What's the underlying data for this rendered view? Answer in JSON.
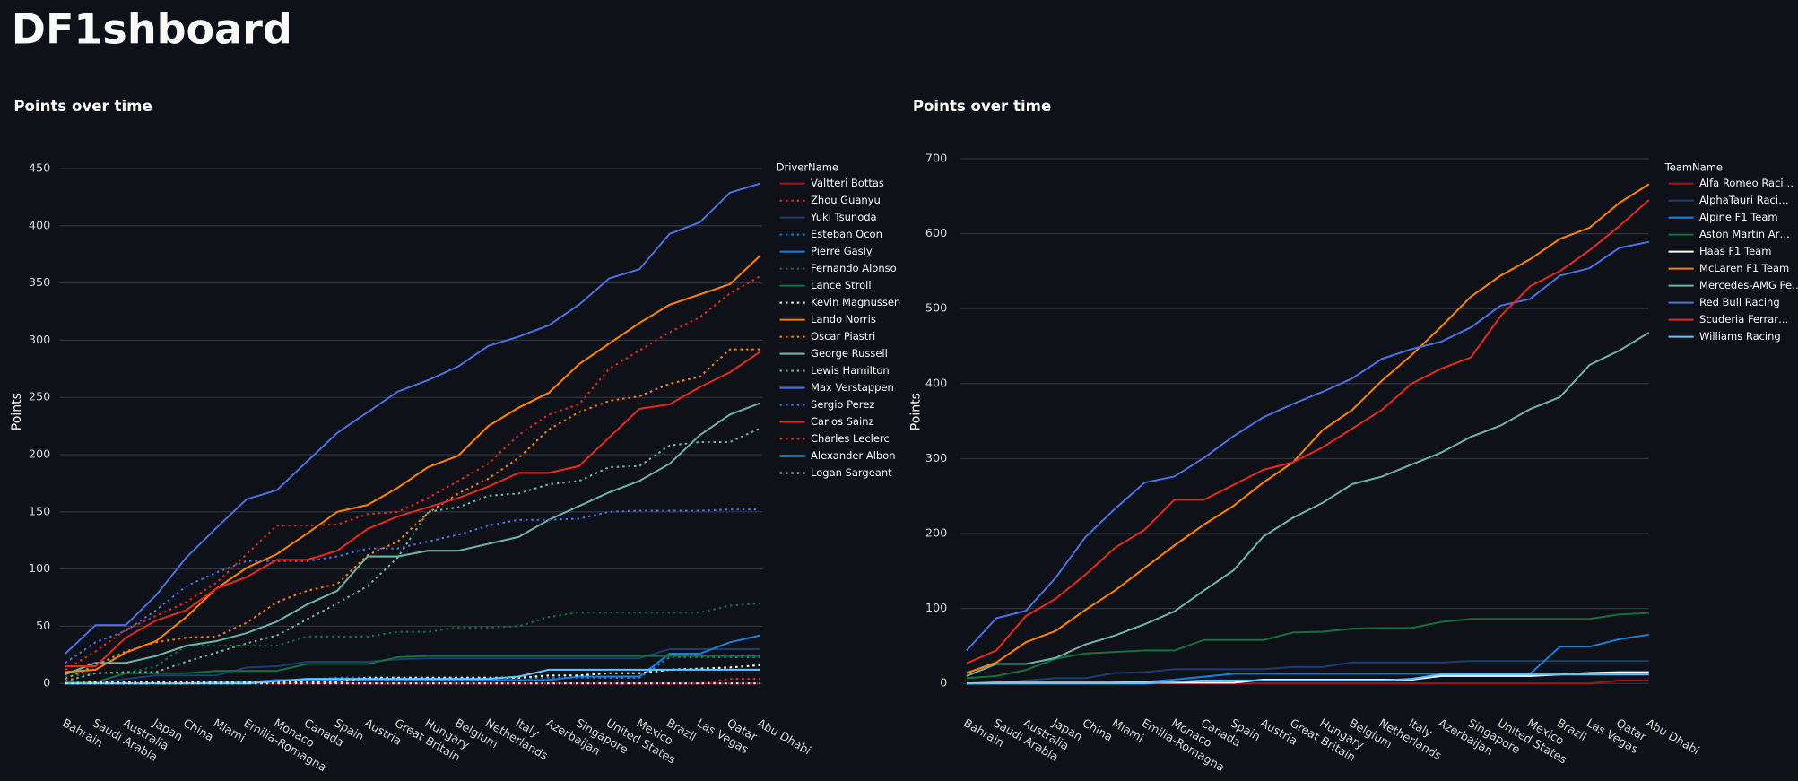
{
  "heading": "DF1shboard",
  "chart_data": [
    {
      "type": "line",
      "title": "Points over time",
      "ylabel": "Points",
      "legend_title": "DriverName",
      "legend": "right",
      "grid": true,
      "categories": [
        "Bahrain",
        "Saudi Arabia",
        "Australia",
        "Japan",
        "China",
        "Miami",
        "Emilia-Romagna",
        "Monaco",
        "Canada",
        "Spain",
        "Austria",
        "Great Britain",
        "Hungary",
        "Belgium",
        "Netherlands",
        "Italy",
        "Azerbaijan",
        "Singapore",
        "United States",
        "Mexico",
        "Brazil",
        "Las Vegas",
        "Qatar",
        "Abu Dhabi"
      ],
      "ylim": [
        0,
        475
      ],
      "yticks": [
        0,
        50,
        100,
        150,
        200,
        250,
        300,
        350,
        400,
        450
      ],
      "series": [
        {
          "name": "Valtteri Bottas",
          "color": "#a3131a",
          "dash": "solid",
          "values": [
            0,
            0,
            0,
            0,
            0,
            0,
            0,
            0,
            0,
            0,
            0,
            0,
            0,
            0,
            0,
            0,
            0,
            0,
            0,
            0,
            0,
            0,
            0,
            0
          ]
        },
        {
          "name": "Zhou Guanyu",
          "color": "#e8281e",
          "dash": "dotted",
          "values": [
            0,
            0,
            0,
            0,
            0,
            0,
            0,
            0,
            0,
            0,
            0,
            0,
            0,
            0,
            0,
            0,
            0,
            0,
            0,
            0,
            0,
            0,
            4,
            4
          ]
        },
        {
          "name": "Yuki Tsunoda",
          "color": "#1e3a6e",
          "dash": "solid",
          "values": [
            0,
            0,
            4,
            7,
            7,
            7,
            14,
            15,
            19,
            19,
            19,
            21,
            22,
            22,
            22,
            22,
            22,
            22,
            22,
            22,
            30,
            30,
            30,
            30
          ]
        },
        {
          "name": "Esteban Ocon",
          "color": "#1a7fd6",
          "dash": "dotted",
          "values": [
            0,
            0,
            0,
            0,
            0,
            1,
            1,
            1,
            3,
            5,
            5,
            5,
            5,
            5,
            5,
            5,
            5,
            5,
            5,
            5,
            23,
            23,
            23,
            23
          ]
        },
        {
          "name": "Pierre Gasly",
          "color": "#1a7fd6",
          "dash": "solid",
          "values": [
            0,
            0,
            0,
            0,
            0,
            1,
            1,
            3,
            3,
            3,
            3,
            3,
            3,
            3,
            3,
            3,
            3,
            6,
            6,
            6,
            26,
            26,
            36,
            42
          ]
        },
        {
          "name": "Fernando Alonso",
          "color": "#12703f",
          "dash": "dotted",
          "values": [
            6,
            9,
            9,
            15,
            33,
            33,
            33,
            33,
            41,
            41,
            41,
            45,
            45,
            49,
            49,
            50,
            58,
            62,
            62,
            62,
            62,
            62,
            68,
            70
          ]
        },
        {
          "name": "Lance Stroll",
          "color": "#12703f",
          "dash": "solid",
          "values": [
            1,
            1,
            9,
            9,
            9,
            11,
            11,
            11,
            17,
            17,
            17,
            23,
            24,
            24,
            24,
            24,
            24,
            24,
            24,
            24,
            24,
            24,
            24,
            24
          ]
        },
        {
          "name": "Kevin Magnussen",
          "color": "#ffffff",
          "dash": "dotted",
          "values": [
            0,
            1,
            1,
            1,
            1,
            1,
            1,
            1,
            1,
            1,
            5,
            5,
            5,
            5,
            5,
            5,
            7,
            7,
            9,
            9,
            12,
            13,
            14,
            16
          ]
        },
        {
          "name": "Lando Norris",
          "color": "#ff8000",
          "dash": "solid",
          "values": [
            10,
            12,
            27,
            37,
            58,
            83,
            101,
            113,
            131,
            150,
            156,
            171,
            189,
            199,
            225,
            241,
            254,
            279,
            297,
            315,
            331,
            340,
            349,
            374
          ]
        },
        {
          "name": "Oscar Piastri",
          "color": "#ff8000",
          "dash": "dotted",
          "values": [
            4,
            16,
            28,
            36,
            40,
            41,
            53,
            71,
            81,
            87,
            112,
            124,
            149,
            166,
            179,
            197,
            222,
            237,
            247,
            251,
            262,
            268,
            292,
            292
          ]
        },
        {
          "name": "George Russell",
          "color": "#6cb2a8",
          "dash": "solid",
          "values": [
            8,
            18,
            18,
            24,
            33,
            37,
            44,
            54,
            69,
            81,
            111,
            111,
            116,
            116,
            122,
            128,
            143,
            155,
            167,
            177,
            192,
            217,
            235,
            245
          ]
        },
        {
          "name": "Lewis Hamilton",
          "color": "#6cb2a8",
          "dash": "dotted",
          "values": [
            2,
            9,
            10,
            10,
            19,
            27,
            35,
            42,
            56,
            70,
            85,
            110,
            150,
            154,
            164,
            166,
            174,
            177,
            189,
            190,
            208,
            211,
            211,
            223
          ]
        },
        {
          "name": "Max Verstappen",
          "color": "#4a6fe3",
          "dash": "solid",
          "values": [
            26,
            51,
            51,
            77,
            110,
            136,
            161,
            169,
            194,
            219,
            237,
            255,
            265,
            277,
            295,
            303,
            313,
            331,
            354,
            362,
            393,
            403,
            429,
            437
          ]
        },
        {
          "name": "Sergio Perez",
          "color": "#4a6fe3",
          "dash": "dotted",
          "values": [
            18,
            36,
            46,
            64,
            85,
            97,
            107,
            107,
            107,
            111,
            118,
            118,
            124,
            130,
            138,
            143,
            143,
            144,
            150,
            151,
            151,
            151,
            152,
            152
          ]
        },
        {
          "name": "Carlos Sainz",
          "color": "#e8281e",
          "dash": "solid",
          "values": [
            15,
            15,
            40,
            55,
            64,
            83,
            93,
            108,
            108,
            116,
            135,
            146,
            154,
            162,
            172,
            184,
            184,
            190,
            215,
            240,
            244,
            259,
            272,
            290
          ]
        },
        {
          "name": "Charles Leclerc",
          "color": "#e8281e",
          "dash": "dotted",
          "values": [
            12,
            28,
            47,
            59,
            71,
            88,
            113,
            138,
            138,
            139,
            148,
            150,
            162,
            177,
            192,
            217,
            235,
            244,
            275,
            291,
            307,
            320,
            341,
            356
          ]
        },
        {
          "name": "Alexander Albon",
          "color": "#64c4ff",
          "dash": "solid",
          "values": [
            0,
            0,
            0,
            0,
            0,
            0,
            0,
            2,
            4,
            4,
            4,
            4,
            4,
            4,
            4,
            6,
            12,
            12,
            12,
            12,
            12,
            12,
            12,
            12
          ]
        },
        {
          "name": "Logan Sargeant",
          "color": "#b6e3ff",
          "dash": "dotted",
          "values": [
            0,
            0,
            0,
            0,
            0,
            0,
            0,
            0,
            0,
            0,
            0,
            0,
            0,
            0,
            0,
            0,
            0,
            0,
            0,
            0,
            0,
            0,
            0,
            0
          ]
        }
      ]
    },
    {
      "type": "line",
      "title": "Points over time",
      "ylabel": "Points",
      "legend_title": "TeamName",
      "legend": "right",
      "grid": true,
      "categories": [
        "Bahrain",
        "Saudi Arabia",
        "Australia",
        "Japan",
        "China",
        "Miami",
        "Emilia-Romagna",
        "Monaco",
        "Canada",
        "Spain",
        "Austria",
        "Great Britain",
        "Hungary",
        "Belgium",
        "Netherlands",
        "Italy",
        "Azerbaijan",
        "Singapore",
        "United States",
        "Mexico",
        "Brazil",
        "Las Vegas",
        "Qatar",
        "Abu Dhabi"
      ],
      "ylim": [
        0,
        725
      ],
      "yticks": [
        0,
        100,
        200,
        300,
        400,
        500,
        600,
        700
      ],
      "series": [
        {
          "name": "Alfa Romeo Raci…",
          "color": "#a3131a",
          "dash": "solid",
          "values": [
            0,
            0,
            0,
            0,
            0,
            0,
            0,
            0,
            0,
            0,
            0,
            0,
            0,
            0,
            0,
            0,
            0,
            0,
            0,
            0,
            0,
            0,
            4,
            4
          ]
        },
        {
          "name": "AlphaTauri Raci…",
          "color": "#1e3a6e",
          "dash": "solid",
          "values": [
            0,
            0,
            4,
            7,
            7,
            14,
            15,
            19,
            19,
            19,
            19,
            22,
            22,
            28,
            28,
            28,
            28,
            30,
            30,
            30,
            30,
            30,
            30,
            30
          ]
        },
        {
          "name": "Alpine F1 Team",
          "color": "#1a7fd6",
          "dash": "solid",
          "values": [
            0,
            0,
            0,
            0,
            0,
            1,
            2,
            5,
            9,
            13,
            13,
            13,
            13,
            13,
            13,
            13,
            13,
            13,
            13,
            13,
            49,
            49,
            59,
            65
          ]
        },
        {
          "name": "Aston Martin Ar…",
          "color": "#12703f",
          "dash": "solid",
          "values": [
            7,
            10,
            18,
            33,
            40,
            42,
            44,
            44,
            58,
            58,
            58,
            68,
            69,
            73,
            74,
            74,
            82,
            86,
            86,
            86,
            86,
            86,
            92,
            94
          ]
        },
        {
          "name": "Haas F1 Team",
          "color": "#ffffff",
          "dash": "solid",
          "values": [
            0,
            1,
            1,
            1,
            1,
            1,
            1,
            1,
            1,
            1,
            5,
            5,
            5,
            5,
            5,
            5,
            10,
            10,
            10,
            10,
            12,
            14,
            15,
            15
          ]
        },
        {
          "name": "McLaren F1 Team",
          "color": "#ff8000",
          "dash": "solid",
          "values": [
            14,
            28,
            55,
            70,
            98,
            124,
            154,
            184,
            212,
            237,
            268,
            295,
            338,
            365,
            404,
            438,
            476,
            516,
            544,
            566,
            593,
            608,
            641,
            666
          ]
        },
        {
          "name": "Mercedes-AMG Pe…",
          "color": "#6cb2a8",
          "dash": "solid",
          "values": [
            10,
            26,
            26,
            34,
            52,
            64,
            79,
            96,
            124,
            151,
            196,
            221,
            241,
            266,
            276,
            292,
            308,
            329,
            344,
            366,
            382,
            425,
            444,
            468
          ]
        },
        {
          "name": "Red Bull Racing",
          "color": "#4a6fe3",
          "dash": "solid",
          "values": [
            44,
            87,
            97,
            141,
            195,
            233,
            268,
            276,
            301,
            330,
            355,
            373,
            389,
            407,
            433,
            446,
            456,
            475,
            504,
            513,
            544,
            554,
            581,
            589
          ]
        },
        {
          "name": "Scuderia Ferrar…",
          "color": "#e8281e",
          "dash": "solid",
          "values": [
            27,
            44,
            90,
            113,
            145,
            181,
            205,
            245,
            245,
            265,
            285,
            295,
            315,
            340,
            365,
            400,
            420,
            435,
            490,
            530,
            550,
            578,
            610,
            645
          ]
        },
        {
          "name": "Williams Racing",
          "color": "#64c4ff",
          "dash": "solid",
          "values": [
            0,
            0,
            0,
            0,
            0,
            0,
            0,
            2,
            4,
            4,
            4,
            4,
            4,
            4,
            4,
            6,
            12,
            12,
            12,
            12,
            12,
            12,
            12,
            12
          ]
        }
      ]
    }
  ]
}
